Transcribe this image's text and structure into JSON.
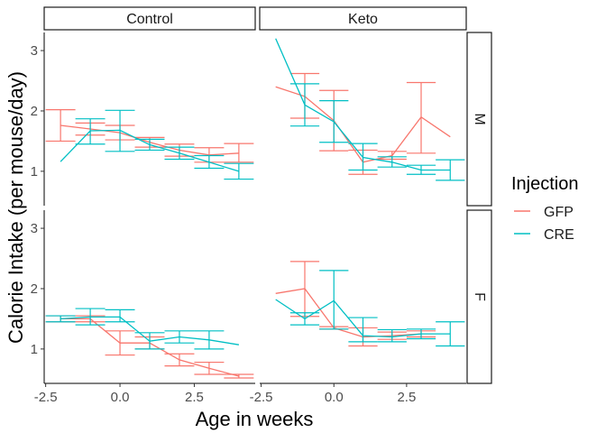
{
  "chart_data": {
    "type": "line",
    "xlabel": "Age in weeks",
    "ylabel": "Calorie Intake (per mouse/day)",
    "xlim": [
      -2.55,
      4.55
    ],
    "ylim": [
      0.43,
      3.3
    ],
    "x_ticks": [
      -2.5,
      0.0,
      2.5
    ],
    "x_tick_labels": [
      "-2.5",
      "0.0",
      "2.5"
    ],
    "y_ticks": [
      1,
      2,
      3
    ],
    "y_tick_labels": [
      "1",
      "2",
      "3"
    ],
    "grid": false,
    "legend": {
      "title": "Injection",
      "position": "right",
      "entries": [
        {
          "label": "GFP",
          "color": "#F8766D"
        },
        {
          "label": "CRE",
          "color": "#00BFC4"
        }
      ]
    },
    "facet_columns": [
      "Control",
      "Keto"
    ],
    "facet_rows": [
      "M",
      "F"
    ],
    "panels": [
      {
        "col": "Control",
        "row": "M",
        "series": [
          {
            "name": "GFP",
            "color": "#F8766D",
            "x": [
              -2,
              -1,
              0,
              1,
              2,
              3,
              4
            ],
            "y": [
              1.76,
              1.7,
              1.64,
              1.48,
              1.35,
              1.27,
              1.3
            ],
            "err_low": [
              1.5,
              1.6,
              1.52,
              1.4,
              1.25,
              1.15,
              1.15
            ],
            "err_high": [
              2.02,
              1.8,
              1.76,
              1.56,
              1.45,
              1.39,
              1.46
            ]
          },
          {
            "name": "CRE",
            "color": "#00BFC4",
            "x": [
              -2,
              -1,
              0,
              1,
              2,
              3,
              4
            ],
            "y": [
              1.16,
              1.67,
              1.68,
              1.44,
              1.3,
              1.15,
              1.0
            ],
            "err_low": [
              null,
              1.45,
              1.33,
              1.35,
              1.2,
              1.05,
              0.87
            ],
            "err_high": [
              null,
              1.87,
              2.01,
              1.53,
              1.4,
              1.26,
              1.13
            ]
          }
        ]
      },
      {
        "col": "Keto",
        "row": "M",
        "series": [
          {
            "name": "GFP",
            "color": "#F8766D",
            "x": [
              -2,
              -1,
              0,
              1,
              2,
              3,
              4
            ],
            "y": [
              2.4,
              2.24,
              1.84,
              1.15,
              1.26,
              1.9,
              1.57
            ],
            "err_low": [
              null,
              1.88,
              1.34,
              0.95,
              1.2,
              1.3,
              null
            ],
            "err_high": [
              null,
              2.62,
              2.34,
              1.35,
              1.33,
              2.47,
              null
            ]
          },
          {
            "name": "CRE",
            "color": "#00BFC4",
            "x": [
              -2,
              -1,
              0,
              1,
              2,
              3,
              4
            ],
            "y": [
              3.2,
              2.1,
              1.82,
              1.23,
              1.15,
              1.02,
              1.02
            ],
            "err_low": [
              null,
              1.75,
              1.48,
              1.02,
              1.07,
              0.95,
              0.85
            ],
            "err_high": [
              null,
              2.45,
              2.17,
              1.46,
              1.24,
              1.1,
              1.19
            ]
          }
        ]
      },
      {
        "col": "Control",
        "row": "F",
        "series": [
          {
            "name": "GFP",
            "color": "#F8766D",
            "x": [
              -2,
              -1,
              0,
              1,
              2,
              3,
              4
            ],
            "y": [
              1.5,
              1.5,
              1.1,
              1.1,
              0.82,
              0.68,
              0.55
            ],
            "err_low": [
              1.45,
              1.45,
              0.9,
              1.0,
              0.72,
              0.58,
              0.52
            ],
            "err_high": [
              1.55,
              1.55,
              1.3,
              1.2,
              0.92,
              0.78,
              0.58
            ]
          },
          {
            "name": "CRE",
            "color": "#00BFC4",
            "x": [
              -2,
              -1,
              0,
              1,
              2,
              3,
              4
            ],
            "y": [
              1.5,
              1.53,
              1.53,
              1.13,
              1.2,
              1.15,
              1.07
            ],
            "err_low": [
              1.45,
              1.4,
              1.45,
              1.0,
              1.1,
              1.0,
              null
            ],
            "err_high": [
              1.55,
              1.67,
              1.65,
              1.27,
              1.3,
              1.3,
              null
            ]
          }
        ]
      },
      {
        "col": "Keto",
        "row": "F",
        "series": [
          {
            "name": "GFP",
            "color": "#F8766D",
            "x": [
              -2,
              -1,
              0,
              1,
              2,
              3
            ],
            "y": [
              1.92,
              2.0,
              1.35,
              1.2,
              1.22,
              1.25
            ],
            "err_low": [
              null,
              1.54,
              1.33,
              1.05,
              1.16,
              1.2
            ],
            "err_high": [
              null,
              2.45,
              1.37,
              1.35,
              1.28,
              1.3
            ]
          },
          {
            "name": "CRE",
            "color": "#00BFC4",
            "x": [
              -2,
              -1,
              0,
              1,
              2,
              3,
              4
            ],
            "y": [
              1.82,
              1.5,
              1.8,
              1.22,
              1.2,
              1.25,
              1.25
            ],
            "err_low": [
              null,
              1.4,
              1.33,
              1.12,
              1.12,
              1.17,
              1.05
            ],
            "err_high": [
              null,
              1.6,
              2.3,
              1.52,
              1.32,
              1.33,
              1.45
            ]
          }
        ]
      }
    ]
  }
}
